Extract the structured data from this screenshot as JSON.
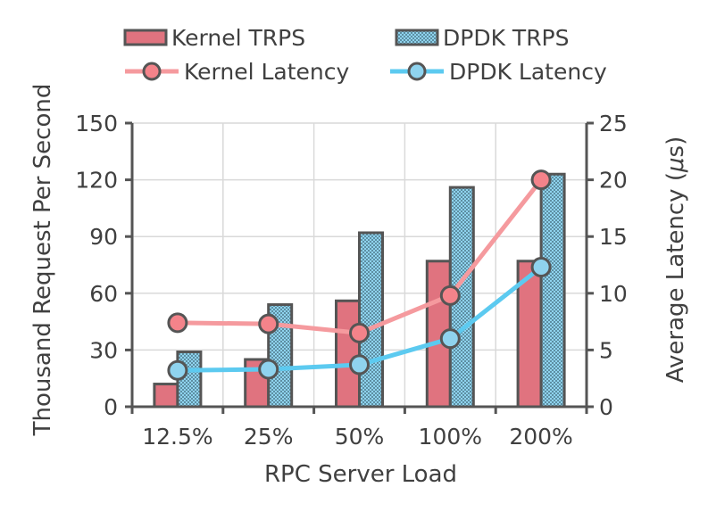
{
  "chart_data": {
    "type": "bar",
    "title": "",
    "categories": [
      "12.5%",
      "25%",
      "50%",
      "100%",
      "200%"
    ],
    "xlabel": "RPC Server Load",
    "ylabel": "Thousand Request Per Second",
    "y2label_prefix": "Average Latency (",
    "y2label_mu": "μ",
    "y2label_suffix": "s)",
    "ylim": [
      0,
      150
    ],
    "y2lim": [
      0,
      25
    ],
    "yticks": [
      "0",
      "30",
      "60",
      "90",
      "120",
      "150"
    ],
    "y2ticks": [
      "0",
      "5",
      "10",
      "15",
      "20",
      "25"
    ],
    "series": [
      {
        "name": "Kernel TRPS",
        "kind": "bar",
        "axis": "left",
        "color": "#e0737f",
        "values": [
          12,
          25,
          56,
          77,
          77
        ]
      },
      {
        "name": "DPDK TRPS",
        "kind": "bar",
        "axis": "left",
        "color": "#8fd3ee",
        "pattern": "checker",
        "values": [
          29,
          54,
          92,
          116,
          123
        ]
      },
      {
        "name": "Kernel Latency",
        "kind": "line",
        "axis": "right",
        "color": "#f59a9e",
        "marker_fill": "#f4838a",
        "values": [
          7.4,
          7.3,
          6.5,
          9.8,
          20
        ]
      },
      {
        "name": "DPDK Latency",
        "kind": "line",
        "axis": "right",
        "color": "#5ccaf0",
        "marker_fill": "#8fd3ee",
        "values": [
          3.2,
          3.3,
          3.7,
          6.0,
          12.3
        ]
      }
    ],
    "legend": {
      "bar_kernel": "Kernel TRPS",
      "bar_dpdk": "DPDK TRPS",
      "line_kernel": "Kernel Latency",
      "line_dpdk": "DPDK Latency"
    },
    "grid": true,
    "legend_position": "top"
  }
}
